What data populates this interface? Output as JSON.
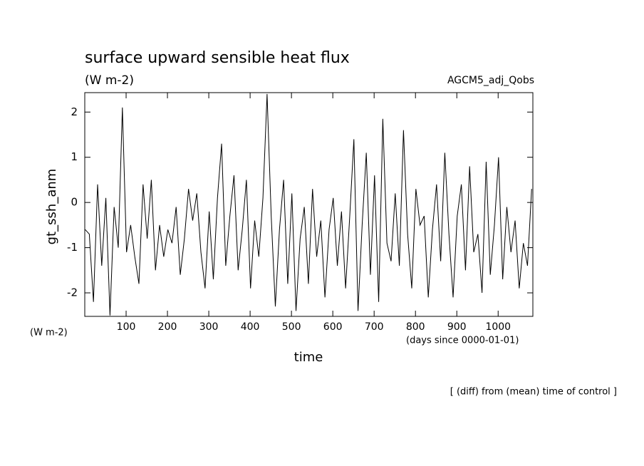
{
  "chart_data": {
    "type": "line",
    "title": "surface upward sensible heat flux",
    "subtitle": "(W m-2)",
    "annotation": "AGCM5_adj_Qobs",
    "y_label": "gt_ssh_anm",
    "y_units": "(W m-2)",
    "x_units": "(days since 0000-01-01)",
    "x_label": "time",
    "footnote": "[ (diff) from (mean) time of control ]",
    "x": [
      1,
      11,
      21,
      31,
      41,
      51,
      61,
      71,
      81,
      91,
      101,
      111,
      121,
      131,
      141,
      151,
      161,
      171,
      181,
      191,
      201,
      211,
      221,
      231,
      241,
      251,
      261,
      271,
      281,
      291,
      301,
      311,
      321,
      331,
      341,
      351,
      361,
      371,
      381,
      391,
      401,
      411,
      421,
      431,
      441,
      451,
      461,
      471,
      481,
      491,
      501,
      511,
      521,
      531,
      541,
      551,
      561,
      571,
      581,
      591,
      601,
      611,
      621,
      631,
      641,
      651,
      661,
      671,
      681,
      691,
      701,
      711,
      721,
      731,
      741,
      751,
      761,
      771,
      781,
      791,
      801,
      811,
      821,
      831,
      841,
      851,
      861,
      871,
      881,
      891,
      901,
      911,
      921,
      931,
      941,
      951,
      961,
      971,
      981,
      991,
      1001,
      1011,
      1021,
      1031,
      1041,
      1051,
      1061,
      1071,
      1081
    ],
    "series": [
      {
        "name": "gt_ssh_anm",
        "color": "#000000",
        "values": [
          -0.6,
          -0.7,
          -2.2,
          0.4,
          -1.4,
          0.1,
          -2.5,
          -0.1,
          -1.0,
          2.1,
          -1.1,
          -0.5,
          -1.2,
          -1.8,
          0.4,
          -0.8,
          0.5,
          -1.5,
          -0.5,
          -1.2,
          -0.6,
          -0.9,
          -0.1,
          -1.6,
          -0.8,
          0.3,
          -0.4,
          0.2,
          -1.1,
          -1.9,
          -0.2,
          -1.7,
          0.1,
          1.3,
          -1.4,
          -0.3,
          0.6,
          -1.5,
          -0.6,
          0.5,
          -1.9,
          -0.4,
          -1.2,
          0.1,
          2.4,
          -0.3,
          -2.3,
          -0.6,
          0.5,
          -1.8,
          0.2,
          -2.4,
          -0.8,
          -0.1,
          -1.8,
          0.3,
          -1.2,
          -0.4,
          -2.1,
          -0.6,
          0.1,
          -1.4,
          -0.2,
          -1.9,
          -0.3,
          1.4,
          -2.4,
          -0.5,
          1.1,
          -1.6,
          0.6,
          -2.2,
          1.85,
          -0.9,
          -1.3,
          0.2,
          -1.4,
          1.6,
          -0.7,
          -1.9,
          0.3,
          -0.5,
          -0.3,
          -2.1,
          -0.6,
          0.4,
          -1.3,
          1.1,
          -0.7,
          -2.1,
          -0.3,
          0.4,
          -1.5,
          0.8,
          -1.1,
          -0.7,
          -2.0,
          0.9,
          -1.6,
          -0.5,
          1.0,
          -1.7,
          -0.1,
          -1.1,
          -0.4,
          -1.9,
          -0.9,
          -1.4,
          0.3
        ]
      }
    ],
    "xlim": [
      0,
      1084
    ],
    "ylim": [
      -2.52,
      2.43
    ],
    "xticks": [
      100,
      200,
      300,
      400,
      500,
      600,
      700,
      800,
      900,
      1000
    ],
    "yticks": [
      -2,
      -1,
      0,
      1,
      2
    ]
  }
}
